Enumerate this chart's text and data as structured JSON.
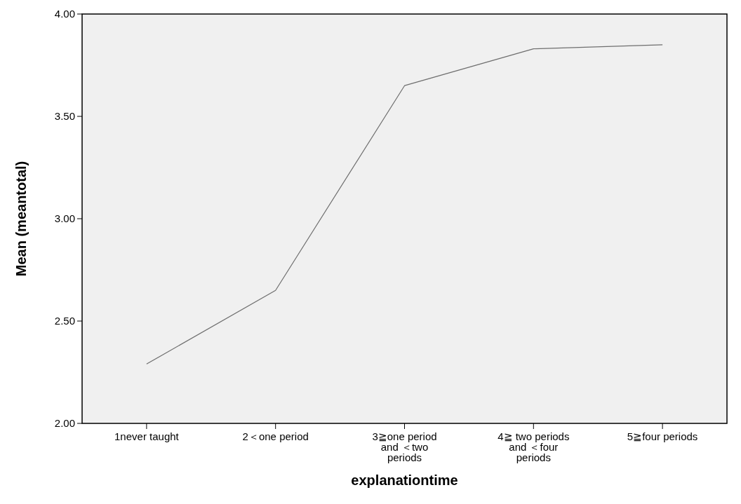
{
  "chart_data": {
    "type": "line",
    "xlabel": "explanationtime",
    "ylabel": "Mean (meantotal)",
    "categories": [
      "1never taught",
      "2＜one period",
      "3≧one period and ＜two periods",
      "4≧ two periods and ＜four periods",
      "5≧four periods"
    ],
    "series": [
      {
        "color": "#6e6e6e",
        "values": [
          2.29,
          2.65,
          3.65,
          3.83,
          3.85
        ]
      }
    ],
    "ylim": [
      2,
      4
    ],
    "yticks": [
      {
        "value": 2,
        "label": "2.00"
      },
      {
        "value": 2.5,
        "label": "2.50"
      },
      {
        "value": 3,
        "label": "3.00"
      },
      {
        "value": 3.5,
        "label": "3.50"
      },
      {
        "value": 4,
        "label": "4.00"
      }
    ],
    "grid": false,
    "marker": "none",
    "line_style": "solid"
  }
}
